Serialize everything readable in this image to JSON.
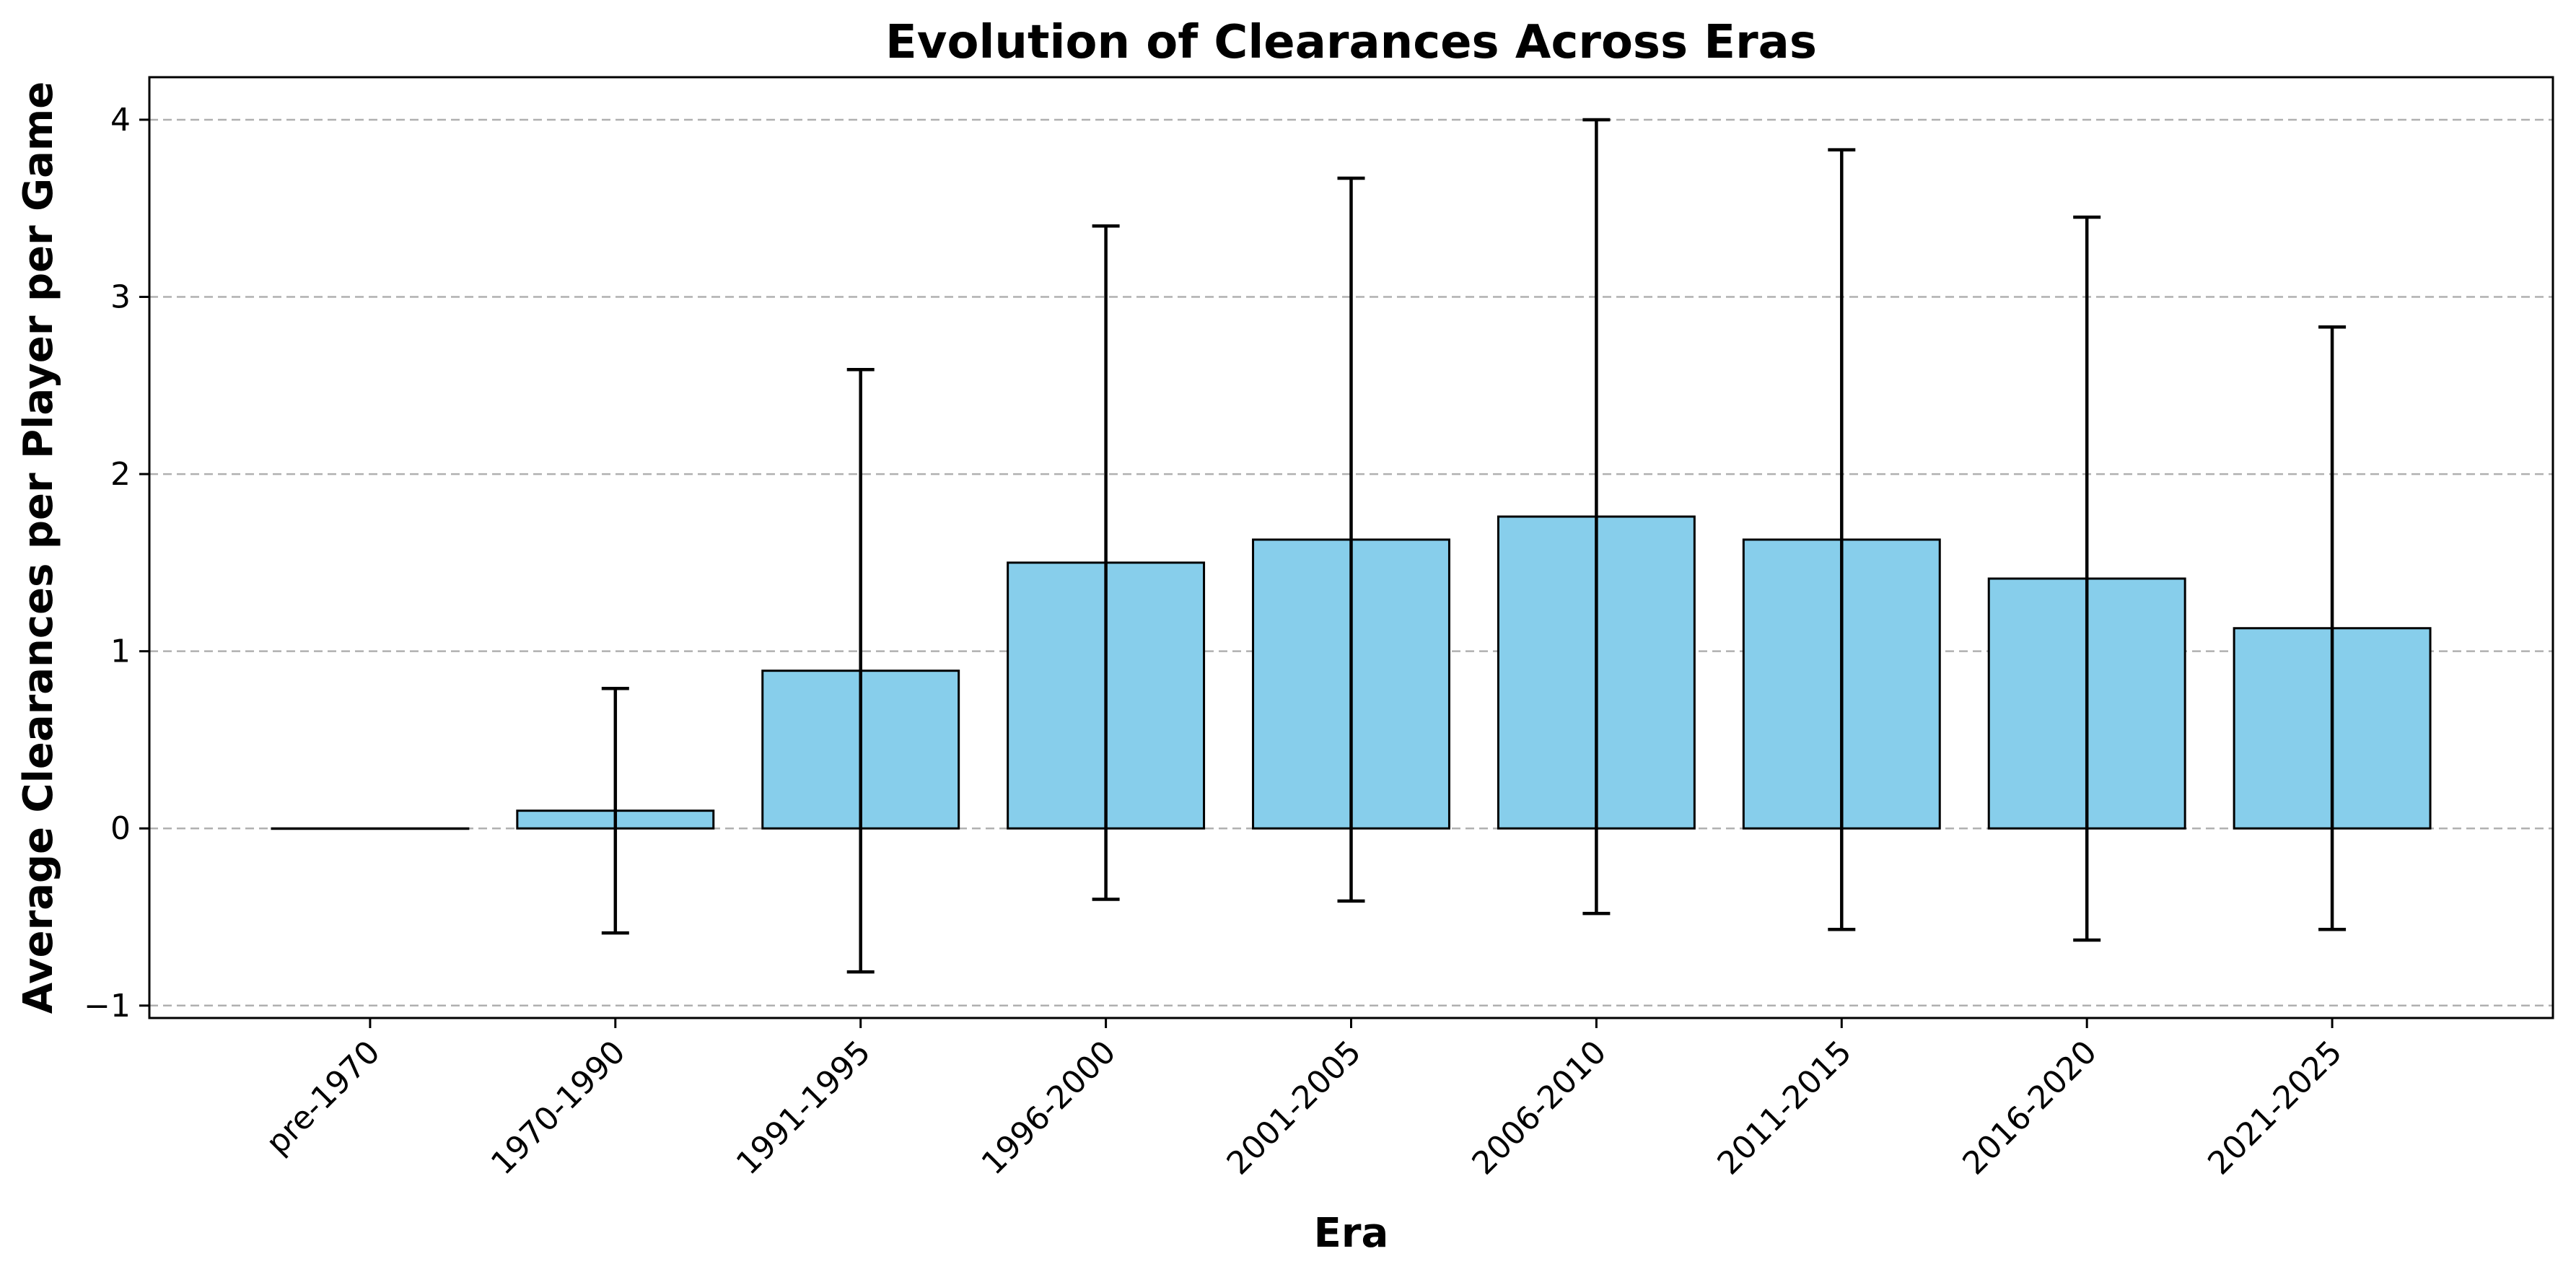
{
  "chart_data": {
    "type": "bar",
    "title": "Evolution of Clearances Across Eras",
    "xlabel": "Era",
    "ylabel": "Average Clearances per Player per Game",
    "categories": [
      "pre-1970",
      "1970-1990",
      "1991-1995",
      "1996-2000",
      "2001-2005",
      "2006-2010",
      "2011-2015",
      "2016-2020",
      "2021-2025"
    ],
    "values": [
      0.0,
      0.1,
      0.89,
      1.5,
      1.63,
      1.76,
      1.63,
      1.41,
      1.13
    ],
    "errors": [
      0.0,
      0.69,
      1.7,
      1.9,
      2.04,
      2.24,
      2.2,
      2.04,
      1.7
    ],
    "ylim": [
      -1.07,
      4.24
    ],
    "yticks": [
      -1,
      0,
      1,
      2,
      3,
      4
    ],
    "ytick_labels": [
      "−1",
      "0",
      "1",
      "2",
      "3",
      "4"
    ],
    "grid": "y-dashed",
    "bar_color": "#87CEEB",
    "edge_color": "#000000",
    "grid_color": "#b0b0b0"
  }
}
